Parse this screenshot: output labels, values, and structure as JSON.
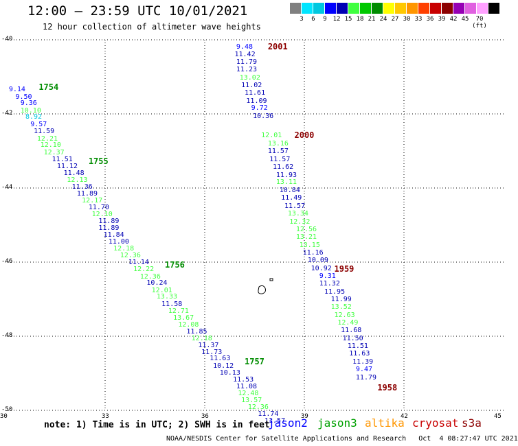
{
  "header": {
    "title": "12:00 – 23:59 UTC 10/01/2021",
    "subtitle": "12 hour collection of altimeter wave heights"
  },
  "legend": {
    "colors": [
      "#808080",
      "#00e5ff",
      "#00c8e0",
      "#0000ff",
      "#0000b4",
      "#40ff40",
      "#00c800",
      "#008c00",
      "#ffff00",
      "#ffc800",
      "#ff9600",
      "#ff4000",
      "#c80000",
      "#8c0000",
      "#9600b4",
      "#e060e0",
      "#ffa0ff",
      "#000000"
    ],
    "labels": [
      "3",
      "6",
      "9",
      "12",
      "15",
      "18",
      "21",
      "24",
      "27",
      "30",
      "33",
      "36",
      "39",
      "42",
      "45",
      "70 (ft)"
    ]
  },
  "notes": {
    "text": "note: 1) Time is in UTC; 2) SWH is in feet",
    "satellites": [
      "jason2",
      "jason3",
      "altika",
      "cryosat",
      "s3a"
    ],
    "satellite_colors": [
      "#0000ff",
      "#00a000",
      "#ff9600",
      "#c80000",
      "#8c0000"
    ],
    "footer": "NOAA/NESDIS Center for Satellite Applications and Research   Oct  4 08:27:47 UTC 2021"
  },
  "chart_data": {
    "type": "scatter",
    "title": "12:00 – 23:59 UTC 10/01/2021",
    "subtitle": "12 hour collection of altimeter wave heights",
    "xlim": [
      30,
      45
    ],
    "ylim": [
      -50,
      -40
    ],
    "x_ticks": [
      "30",
      "33",
      "36",
      "39",
      "42",
      "45"
    ],
    "y_ticks": [
      "-40",
      "-42",
      "-44",
      "-46",
      "-48",
      "-50"
    ],
    "grid": true,
    "passes": [
      {
        "label": "1754",
        "color": "#008c00",
        "lon": 31.0,
        "lat": -41.3
      },
      {
        "label": "1755",
        "color": "#008c00",
        "lon": 32.5,
        "lat": -43.3
      },
      {
        "label": "1756",
        "color": "#008c00",
        "lon": 34.8,
        "lat": -46.1
      },
      {
        "label": "1757",
        "color": "#008c00",
        "lon": 37.2,
        "lat": -48.7
      },
      {
        "label": "2001",
        "color": "#8c0000",
        "lon": 37.9,
        "lat": -40.2
      },
      {
        "label": "2000",
        "color": "#8c0000",
        "lon": 38.7,
        "lat": -42.6
      },
      {
        "label": "1959",
        "color": "#8c0000",
        "lon": 39.9,
        "lat": -46.2
      },
      {
        "label": "1958",
        "color": "#8c0000",
        "lon": 41.2,
        "lat": -49.4
      }
    ],
    "series": [
      {
        "points": [
          {
            "lon": 30.1,
            "lat": -41.35,
            "v": "9.14",
            "c": "#0000ff"
          },
          {
            "lon": 30.3,
            "lat": -41.55,
            "v": "9.50",
            "c": "#0000ff"
          },
          {
            "lon": 30.45,
            "lat": -41.73,
            "v": "9.36",
            "c": "#0000ff"
          },
          {
            "lon": 30.45,
            "lat": -41.92,
            "v": "10.10",
            "c": "#40ff40"
          },
          {
            "lon": 30.6,
            "lat": -42.1,
            "v": "8.92",
            "c": "#00c8e0"
          },
          {
            "lon": 30.75,
            "lat": -42.3,
            "v": "9.57",
            "c": "#0000ff"
          },
          {
            "lon": 30.85,
            "lat": -42.48,
            "v": "11.59",
            "c": "#0000b4"
          },
          {
            "lon": 30.95,
            "lat": -42.68,
            "v": "12.21",
            "c": "#40ff40"
          },
          {
            "lon": 31.05,
            "lat": -42.86,
            "v": "12.10",
            "c": "#40ff40"
          },
          {
            "lon": 31.15,
            "lat": -43.05,
            "v": "12.37",
            "c": "#40ff40"
          },
          {
            "lon": 31.4,
            "lat": -43.24,
            "v": "11.51",
            "c": "#0000b4"
          },
          {
            "lon": 31.55,
            "lat": -43.42,
            "v": "11.12",
            "c": "#0000b4"
          },
          {
            "lon": 31.75,
            "lat": -43.61,
            "v": "11.48",
            "c": "#0000b4"
          },
          {
            "lon": 31.85,
            "lat": -43.8,
            "v": "12.13",
            "c": "#40ff40"
          },
          {
            "lon": 32.0,
            "lat": -43.98,
            "v": "11.36",
            "c": "#0000b4"
          },
          {
            "lon": 32.15,
            "lat": -44.17,
            "v": "11.89",
            "c": "#0000b4"
          },
          {
            "lon": 32.3,
            "lat": -44.35,
            "v": "12.17",
            "c": "#40ff40"
          },
          {
            "lon": 32.5,
            "lat": -44.54,
            "v": "11.70",
            "c": "#0000b4"
          },
          {
            "lon": 32.6,
            "lat": -44.72,
            "v": "12.10",
            "c": "#40ff40"
          },
          {
            "lon": 32.8,
            "lat": -44.91,
            "v": "11.89",
            "c": "#0000b4"
          },
          {
            "lon": 32.8,
            "lat": -45.1,
            "v": "11.89",
            "c": "#0000b4"
          },
          {
            "lon": 32.95,
            "lat": -45.28,
            "v": "11.84",
            "c": "#0000b4"
          },
          {
            "lon": 33.1,
            "lat": -45.47,
            "v": "11.00",
            "c": "#0000b4"
          },
          {
            "lon": 33.25,
            "lat": -45.65,
            "v": "12.18",
            "c": "#40ff40"
          },
          {
            "lon": 33.45,
            "lat": -45.84,
            "v": "12.36",
            "c": "#40ff40"
          },
          {
            "lon": 33.7,
            "lat": -46.02,
            "v": "11.14",
            "c": "#0000b4"
          },
          {
            "lon": 33.85,
            "lat": -46.21,
            "v": "12.22",
            "c": "#40ff40"
          },
          {
            "lon": 34.05,
            "lat": -46.4,
            "v": "12.36",
            "c": "#40ff40"
          },
          {
            "lon": 34.25,
            "lat": -46.58,
            "v": "10.24",
            "c": "#0000b4"
          },
          {
            "lon": 34.4,
            "lat": -46.77,
            "v": "12.01",
            "c": "#40ff40"
          },
          {
            "lon": 34.55,
            "lat": -46.95,
            "v": "13.33",
            "c": "#40ff40"
          },
          {
            "lon": 34.7,
            "lat": -47.14,
            "v": "11.58",
            "c": "#0000b4"
          },
          {
            "lon": 34.9,
            "lat": -47.33,
            "v": "12.71",
            "c": "#40ff40"
          },
          {
            "lon": 35.05,
            "lat": -47.51,
            "v": "13.67",
            "c": "#40ff40"
          },
          {
            "lon": 35.2,
            "lat": -47.7,
            "v": "12.08",
            "c": "#40ff40"
          },
          {
            "lon": 35.45,
            "lat": -47.88,
            "v": "11.85",
            "c": "#0000b4"
          },
          {
            "lon": 35.6,
            "lat": -48.07,
            "v": "12.18",
            "c": "#40ff40"
          },
          {
            "lon": 35.8,
            "lat": -48.25,
            "v": "11.37",
            "c": "#0000b4"
          },
          {
            "lon": 35.9,
            "lat": -48.44,
            "v": "11.73",
            "c": "#0000b4"
          },
          {
            "lon": 36.15,
            "lat": -48.62,
            "v": "11.63",
            "c": "#0000b4"
          },
          {
            "lon": 36.25,
            "lat": -48.81,
            "v": "10.12",
            "c": "#0000b4"
          },
          {
            "lon": 36.45,
            "lat": -49.0,
            "v": "10.13",
            "c": "#0000b4"
          },
          {
            "lon": 36.85,
            "lat": -49.18,
            "v": "11.53",
            "c": "#0000b4"
          },
          {
            "lon": 36.95,
            "lat": -49.37,
            "v": "11.08",
            "c": "#0000b4"
          },
          {
            "lon": 37.0,
            "lat": -49.55,
            "v": "12.48",
            "c": "#40ff40"
          },
          {
            "lon": 37.1,
            "lat": -49.74,
            "v": "13.57",
            "c": "#40ff40"
          },
          {
            "lon": 37.3,
            "lat": -49.92,
            "v": "12.36",
            "c": "#40ff40"
          },
          {
            "lon": 37.6,
            "lat": -50.11,
            "v": "11.74",
            "c": "#0000b4"
          },
          {
            "lon": 37.8,
            "lat": -50.3,
            "v": "11.57",
            "c": "#0000b4"
          }
        ]
      },
      {
        "points": [
          {
            "lon": 36.95,
            "lat": -40.2,
            "v": "9.48",
            "c": "#0000ff"
          },
          {
            "lon": 36.9,
            "lat": -40.4,
            "v": "11.42",
            "c": "#0000b4"
          },
          {
            "lon": 36.95,
            "lat": -40.62,
            "v": "11.79",
            "c": "#0000b4"
          },
          {
            "lon": 36.95,
            "lat": -40.82,
            "v": "11.23",
            "c": "#0000b4"
          },
          {
            "lon": 37.05,
            "lat": -41.04,
            "v": "13.02",
            "c": "#40ff40"
          },
          {
            "lon": 37.1,
            "lat": -41.24,
            "v": "11.02",
            "c": "#0000b4"
          },
          {
            "lon": 37.2,
            "lat": -41.45,
            "v": "11.61",
            "c": "#0000b4"
          },
          {
            "lon": 37.25,
            "lat": -41.66,
            "v": "11.09",
            "c": "#0000b4"
          },
          {
            "lon": 37.4,
            "lat": -41.86,
            "v": "9.72",
            "c": "#0000ff"
          },
          {
            "lon": 37.45,
            "lat": -42.08,
            "v": "10.36",
            "c": "#0000b4"
          },
          {
            "lon": 37.7,
            "lat": -42.6,
            "v": "12.01",
            "c": "#40ff40"
          },
          {
            "lon": 37.9,
            "lat": -42.82,
            "v": "13.16",
            "c": "#40ff40"
          },
          {
            "lon": 37.9,
            "lat": -43.02,
            "v": "11.57",
            "c": "#0000b4"
          },
          {
            "lon": 37.95,
            "lat": -43.24,
            "v": "11.57",
            "c": "#0000b4"
          },
          {
            "lon": 38.05,
            "lat": -43.44,
            "v": "11.62",
            "c": "#0000b4"
          },
          {
            "lon": 38.15,
            "lat": -43.66,
            "v": "11.93",
            "c": "#0000b4"
          },
          {
            "lon": 38.15,
            "lat": -43.86,
            "v": "13.11",
            "c": "#40ff40"
          },
          {
            "lon": 38.25,
            "lat": -44.08,
            "v": "10.84",
            "c": "#0000b4"
          },
          {
            "lon": 38.3,
            "lat": -44.28,
            "v": "11.49",
            "c": "#0000b4"
          },
          {
            "lon": 38.4,
            "lat": -44.5,
            "v": "11.57",
            "c": "#0000b4"
          },
          {
            "lon": 38.5,
            "lat": -44.71,
            "v": "13.34",
            "c": "#40ff40"
          },
          {
            "lon": 38.55,
            "lat": -44.92,
            "v": "12.32",
            "c": "#40ff40"
          },
          {
            "lon": 38.75,
            "lat": -45.13,
            "v": "12.56",
            "c": "#40ff40"
          },
          {
            "lon": 38.75,
            "lat": -45.34,
            "v": "13.21",
            "c": "#40ff40"
          },
          {
            "lon": 38.85,
            "lat": -45.55,
            "v": "13.15",
            "c": "#40ff40"
          },
          {
            "lon": 38.95,
            "lat": -45.76,
            "v": "11.16",
            "c": "#0000b4"
          },
          {
            "lon": 39.1,
            "lat": -45.97,
            "v": "10.09",
            "c": "#0000b4"
          },
          {
            "lon": 39.2,
            "lat": -46.18,
            "v": "10.92",
            "c": "#0000b4"
          },
          {
            "lon": 39.45,
            "lat": -46.39,
            "v": "9.31",
            "c": "#0000ff"
          },
          {
            "lon": 39.45,
            "lat": -46.6,
            "v": "11.32",
            "c": "#0000b4"
          },
          {
            "lon": 39.6,
            "lat": -46.81,
            "v": "11.95",
            "c": "#0000b4"
          },
          {
            "lon": 39.8,
            "lat": -47.02,
            "v": "11.99",
            "c": "#0000b4"
          },
          {
            "lon": 39.8,
            "lat": -47.23,
            "v": "13.52",
            "c": "#40ff40"
          },
          {
            "lon": 39.9,
            "lat": -47.44,
            "v": "12.63",
            "c": "#40ff40"
          },
          {
            "lon": 40.0,
            "lat": -47.65,
            "v": "12.49",
            "c": "#40ff40"
          },
          {
            "lon": 40.1,
            "lat": -47.86,
            "v": "11.68",
            "c": "#0000b4"
          },
          {
            "lon": 40.15,
            "lat": -48.07,
            "v": "11.50",
            "c": "#0000b4"
          },
          {
            "lon": 40.3,
            "lat": -48.28,
            "v": "11.51",
            "c": "#0000b4"
          },
          {
            "lon": 40.35,
            "lat": -48.49,
            "v": "11.63",
            "c": "#0000b4"
          },
          {
            "lon": 40.45,
            "lat": -48.7,
            "v": "11.39",
            "c": "#0000b4"
          },
          {
            "lon": 40.55,
            "lat": -48.91,
            "v": "9.47",
            "c": "#0000ff"
          },
          {
            "lon": 40.55,
            "lat": -49.13,
            "v": "11.79",
            "c": "#0000b4"
          }
        ]
      }
    ]
  }
}
